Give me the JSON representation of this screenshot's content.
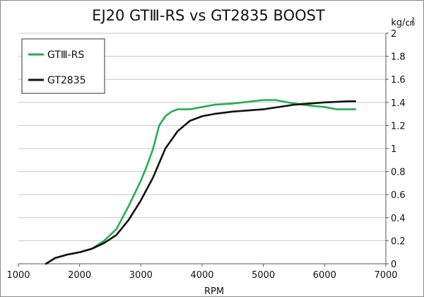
{
  "chart_data": {
    "type": "line",
    "title": "EJ20 GTⅢ-RS vs GT2835 BOOST",
    "xlabel": "RPM",
    "ylabel": "kg/㎠",
    "xlim": [
      1000,
      7000
    ],
    "ylim": [
      0,
      2
    ],
    "x_ticks": [
      "1000",
      "2000",
      "3000",
      "4000",
      "5000",
      "6000",
      "7000"
    ],
    "y_ticks": [
      "0",
      "0.2",
      "0.4",
      "0.6",
      "0.8",
      "1",
      "1.2",
      "1.4",
      "1.6",
      "1.8",
      "2"
    ],
    "grid": true,
    "legend_position": "top-left",
    "series": [
      {
        "name": "GTⅢ-RS",
        "color": "#22b04c",
        "x": [
          1450,
          1600,
          1800,
          2000,
          2200,
          2400,
          2600,
          2800,
          3000,
          3100,
          3200,
          3300,
          3400,
          3500,
          3600,
          3700,
          3800,
          4000,
          4200,
          4500,
          5000,
          5200,
          5500,
          5800,
          6000,
          6200,
          6500
        ],
        "y": [
          0.0,
          0.05,
          0.08,
          0.1,
          0.13,
          0.2,
          0.3,
          0.5,
          0.72,
          0.85,
          1.0,
          1.2,
          1.28,
          1.32,
          1.34,
          1.34,
          1.34,
          1.36,
          1.38,
          1.39,
          1.42,
          1.42,
          1.39,
          1.37,
          1.36,
          1.34,
          1.34
        ]
      },
      {
        "name": "GT2835",
        "color": "#111111",
        "x": [
          1450,
          1600,
          1800,
          2000,
          2200,
          2400,
          2600,
          2800,
          3000,
          3200,
          3400,
          3600,
          3800,
          4000,
          4200,
          4500,
          5000,
          5500,
          6000,
          6400,
          6500
        ],
        "y": [
          0.0,
          0.05,
          0.08,
          0.1,
          0.13,
          0.18,
          0.25,
          0.38,
          0.55,
          0.75,
          1.0,
          1.15,
          1.24,
          1.28,
          1.3,
          1.32,
          1.34,
          1.38,
          1.4,
          1.41,
          1.41
        ]
      }
    ]
  }
}
